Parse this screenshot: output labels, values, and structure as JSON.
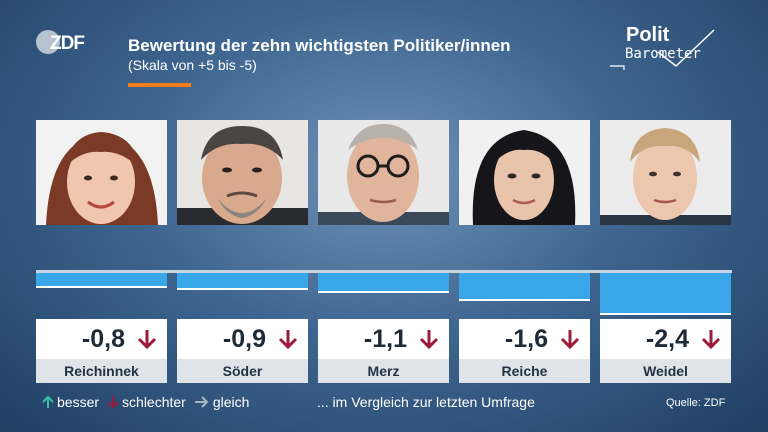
{
  "header": {
    "title": "Bewertung der zehn wichtigsten Politiker/innen",
    "subtitle": "(Skala von +5 bis -5)",
    "logo_left": "ZDF",
    "logo_right_line1": "Polit",
    "logo_right_line2": "Barometer"
  },
  "colors": {
    "bar": "#39a6ea",
    "accent": "#f07d1a",
    "arrow_down": "#9b1b3a",
    "arrow_up": "#39c0a0",
    "arrow_same": "#a9b4c0"
  },
  "chart_data": {
    "type": "bar",
    "title": "Bewertung der zehn wichtigsten Politiker/innen",
    "subtitle": "(Skala von +5 bis -5)",
    "ylim": [
      -5,
      5
    ],
    "categories": [
      "Reichinnek",
      "Söder",
      "Merz",
      "Reiche",
      "Weidel"
    ],
    "values": [
      -0.8,
      -0.9,
      -1.1,
      -1.6,
      -2.4
    ],
    "value_labels": [
      "-0,8",
      "-0,9",
      "-1,1",
      "-1,6",
      "-2,4"
    ],
    "trend": [
      "down",
      "down",
      "down",
      "down",
      "down"
    ]
  },
  "legend": {
    "better": "besser",
    "worse": "schlechter",
    "same": "gleich",
    "note": "... im Vergleich zur letzten Umfrage"
  },
  "source": "Quelle: ZDF"
}
